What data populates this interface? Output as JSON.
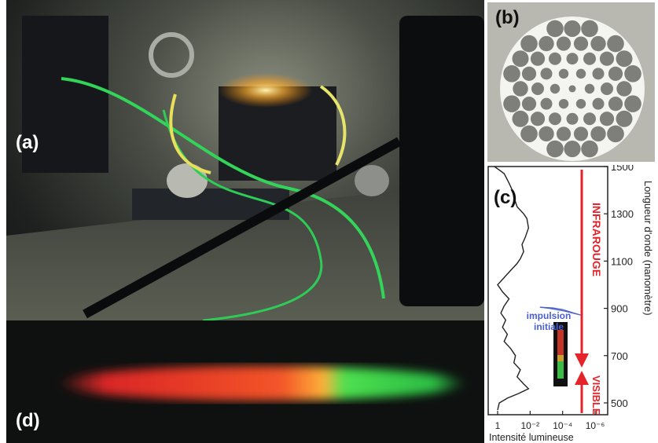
{
  "panels": {
    "a": {
      "label": "(a)"
    },
    "b": {
      "label": "(b)"
    },
    "c": {
      "label": "(c)"
    },
    "d": {
      "label": "(d)"
    }
  },
  "chart_data": {
    "type": "line",
    "y_axis_label": "Longueur d'onde (nanomètre)",
    "x_axis_label": "Intensité lumineuse",
    "y_ticks": [
      1500,
      1300,
      1100,
      900,
      700,
      500
    ],
    "ylim": [
      450,
      1500
    ],
    "x_ticks": [
      "1",
      "10⁻²",
      "10⁻⁴",
      "10⁻⁶"
    ],
    "x_scale": "log-reversed",
    "annotations": {
      "infrarouge": "INFRAROUGE",
      "visible": "VISIBLE",
      "pulse": [
        "impulsion",
        "initiale"
      ]
    },
    "series": [
      {
        "kind": "spectrum",
        "color": "#222222",
        "points": [
          [
            0.2,
            1500
          ],
          [
            -0.4,
            1470
          ],
          [
            -0.7,
            1430
          ],
          [
            -0.9,
            1400
          ],
          [
            -1.0,
            1370
          ],
          [
            -1.2,
            1330
          ],
          [
            -1.6,
            1300
          ],
          [
            -1.8,
            1280
          ],
          [
            -1.9,
            1240
          ],
          [
            -1.7,
            1200
          ],
          [
            -1.5,
            1170
          ],
          [
            -1.6,
            1140
          ],
          [
            -1.4,
            1110
          ],
          [
            -1.2,
            1090
          ],
          [
            -0.8,
            1060
          ],
          [
            -0.4,
            1030
          ],
          [
            0.0,
            1000
          ],
          [
            -0.3,
            970
          ],
          [
            -0.7,
            940
          ],
          [
            -0.4,
            910
          ],
          [
            -0.2,
            880
          ],
          [
            -0.5,
            850
          ],
          [
            -0.3,
            820
          ],
          [
            -0.6,
            790
          ],
          [
            -0.4,
            760
          ],
          [
            -0.8,
            730
          ],
          [
            -1.1,
            700
          ],
          [
            -1.0,
            670
          ],
          [
            -1.4,
            640
          ],
          [
            -1.2,
            610
          ],
          [
            -1.6,
            580
          ],
          [
            -1.9,
            560
          ],
          [
            -1.3,
            540
          ],
          [
            -0.6,
            520
          ],
          [
            -0.1,
            500
          ],
          [
            0.0,
            470
          ]
        ]
      },
      {
        "kind": "initial-pulse",
        "color": "#4a5fcf",
        "points": [
          [
            -2.6,
            905
          ],
          [
            -3.2,
            900
          ],
          [
            -4.0,
            890
          ],
          [
            -4.6,
            880
          ],
          [
            -5.2,
            870
          ],
          [
            -4.6,
            882
          ],
          [
            -4.0,
            895
          ],
          [
            -3.4,
            902
          ],
          [
            -2.6,
            905
          ]
        ]
      }
    ]
  }
}
